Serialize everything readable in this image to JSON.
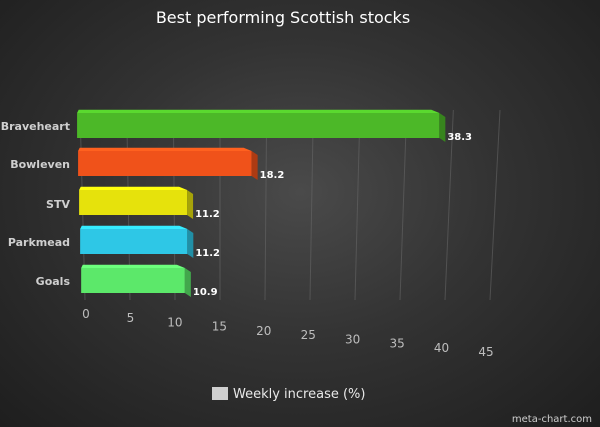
{
  "chart_data": {
    "type": "bar",
    "orientation": "horizontal",
    "title": "Best performing Scottish stocks",
    "categories": [
      "Braveheart",
      "Bowleven",
      "STV",
      "Parkmead",
      "Goals"
    ],
    "series": [
      {
        "name": "Weekly increase (%)",
        "values": [
          38.3,
          18.2,
          11.2,
          11.2,
          10.9
        ],
        "colors": [
          "#4cb828",
          "#f0521a",
          "#e6e20c",
          "#2ec7e6",
          "#5ce86a"
        ]
      }
    ],
    "data_labels": [
      "38.3",
      "18.2",
      "11.2",
      "11.2",
      "10.9"
    ],
    "x_ticks": [
      "0",
      "5",
      "10",
      "15",
      "20",
      "25",
      "30",
      "35",
      "40",
      "45"
    ],
    "xlim": [
      0,
      45
    ],
    "grid": true,
    "legend_position": "bottom",
    "style": "3d"
  },
  "credit": "meta-chart.com"
}
